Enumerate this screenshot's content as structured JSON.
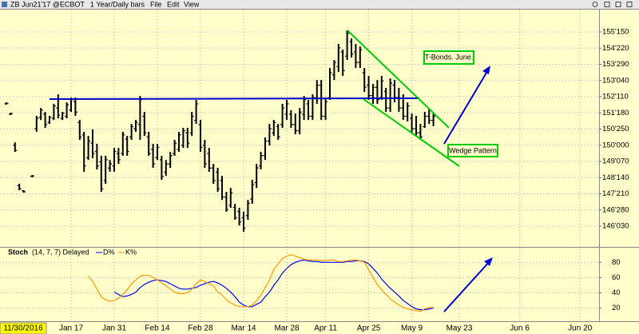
{
  "window": {
    "symbol": "ZB Jun21'17 @ECBOT",
    "interval": "1 Year/Daily bars",
    "menu": [
      "File",
      "Edit",
      "View"
    ]
  },
  "cursor_date": "11/30/2016",
  "chart_data": [
    {
      "type": "ohlc",
      "color": "#000000",
      "ylim": [
        145.13,
        156.55
      ],
      "yticks": [
        {
          "value": 155.46875,
          "label": "155'150"
        },
        {
          "value": 154.6875,
          "label": "154'220"
        },
        {
          "value": 153.90625,
          "label": "153'290"
        },
        {
          "value": 153.125,
          "label": "153'040"
        },
        {
          "value": 152.34375,
          "label": "152'110"
        },
        {
          "value": 151.5625,
          "label": "151'180"
        },
        {
          "value": 150.78125,
          "label": "150'250"
        },
        {
          "value": 150.0,
          "label": "150'000"
        },
        {
          "value": 149.21875,
          "label": "149'070"
        },
        {
          "value": 148.4375,
          "label": "148'140"
        },
        {
          "value": 147.65625,
          "label": "147'210"
        },
        {
          "value": 146.875,
          "label": "146'280"
        },
        {
          "value": 146.09375,
          "label": "146'030"
        }
      ],
      "grid": true,
      "annotations": [
        "T-Bonds. June.",
        "Wedge Pattern"
      ],
      "categories": [
        null,
        null,
        null,
        null,
        null,
        null,
        null,
        null,
        null,
        null,
        null,
        null,
        null,
        null,
        null,
        "Jan 17",
        null,
        null,
        null,
        null,
        null,
        null,
        null,
        null,
        null,
        "Jan 31",
        null,
        null,
        null,
        null,
        null,
        null,
        null,
        null,
        null,
        "Feb 14",
        null,
        null,
        null,
        null,
        null,
        null,
        null,
        null,
        null,
        "Feb 28",
        null,
        null,
        null,
        null,
        null,
        null,
        null,
        null,
        null,
        "Mar 14",
        null,
        null,
        null,
        null,
        null,
        null,
        null,
        null,
        null,
        "Mar 28",
        null,
        null,
        null,
        null,
        null,
        null,
        null,
        null,
        "Apr 11",
        null,
        null,
        null,
        null,
        null,
        null,
        null,
        null,
        null,
        "Apr 25",
        null,
        null,
        null,
        null,
        null,
        null,
        null,
        null,
        null,
        "May 9",
        null,
        null,
        null,
        null,
        null,
        null,
        null,
        null,
        null,
        null,
        "May 23",
        null,
        null,
        null,
        null,
        null,
        null,
        null,
        null,
        null,
        null,
        null,
        null,
        null,
        "Jun 6",
        null,
        null,
        null,
        null,
        null,
        null,
        null,
        null,
        null,
        null,
        null,
        null,
        null,
        "Jun 20",
        null,
        null,
        null,
        null,
        null,
        null,
        null,
        null,
        null,
        null
      ],
      "open": [
        152.0,
        151.5,
        150.0,
        148.05,
        147.8,
        null,
        148.5,
        150.8,
        151.35,
        151.5,
        151.1,
        151.3,
        151.8,
        151.3,
        151.4,
        151.7,
        152.1,
        151.1,
        150.5,
        149.4,
        150.1,
        149.7,
        149.2,
        148.3,
        148.9,
        149.0,
        149.6,
        149.6,
        150.3,
        150.4,
        150.8,
        151.0,
        151.4,
        150.4,
        149.8,
        149.4,
        149.3,
        148.7,
        149.1,
        149.6,
        149.8,
        150.0,
        150.6,
        150.6,
        151.2,
        151.0,
        150.0,
        149.6,
        148.9,
        148.7,
        148.3,
        147.5,
        147.1,
        147.0,
        146.8,
        146.5,
        146.6,
        147.4,
        148.2,
        149.0,
        149.5,
        150.2,
        150.6,
        150.9,
        151.0,
        151.5,
        151.5,
        151.0,
        150.7,
        151.5,
        152.0,
        151.4,
        152.3,
        152.9,
        151.4,
        152.3,
        153.4,
        153.8,
        154.5,
        154.3,
        155.0,
        154.5,
        154.0,
        153.5,
        152.9,
        152.4,
        152.8,
        152.3,
        152.6,
        151.8,
        152.9,
        152.3,
        151.8,
        151.4,
        151.3,
        150.8,
        150.6,
        150.9,
        151.4,
        151.2,
        null,
        null,
        null,
        null,
        null,
        null,
        null,
        null,
        null,
        null,
        null,
        null,
        null,
        null,
        null,
        null,
        null,
        null,
        null,
        null,
        null,
        null,
        null,
        null,
        null,
        null,
        null,
        null,
        null,
        null,
        null,
        null,
        null,
        null,
        null,
        null,
        null,
        null,
        null,
        null,
        null,
        null,
        null,
        null
      ],
      "high": [
        152.07,
        151.57,
        150.14,
        148.14,
        147.83,
        null,
        148.56,
        151.42,
        151.8,
        151.61,
        151.42,
        152.0,
        152.46,
        151.61,
        152.07,
        152.3,
        152.3,
        151.22,
        150.65,
        150.45,
        150.76,
        150.07,
        149.49,
        149.49,
        149.29,
        149.87,
        149.87,
        150.65,
        150.45,
        151.03,
        151.22,
        152.38,
        151.61,
        150.65,
        150.07,
        150.07,
        149.49,
        149.29,
        149.68,
        150.26,
        150.65,
        150.84,
        150.84,
        151.61,
        152.19,
        151.22,
        150.26,
        149.87,
        149.1,
        148.91,
        148.52,
        147.75,
        147.94,
        147.17,
        146.98,
        146.79,
        147.36,
        148.33,
        149.1,
        149.68,
        150.38,
        151.03,
        151.22,
        151.03,
        152.0,
        152.19,
        151.69,
        151.53,
        151.8,
        152.38,
        152.19,
        152.46,
        153.15,
        153.15,
        152.3,
        153.73,
        154.12,
        154.89,
        154.62,
        155.55,
        155.16,
        154.89,
        154.77,
        153.73,
        153.35,
        152.96,
        153.15,
        153.35,
        152.77,
        153.23,
        153.15,
        152.77,
        152.46,
        152.07,
        151.53,
        151.42,
        151.03,
        151.61,
        151.76,
        151.53,
        null,
        null,
        null,
        null,
        null,
        null,
        null,
        null,
        null,
        null,
        null,
        null,
        null,
        null,
        null,
        null,
        null,
        null,
        null,
        null,
        null,
        null,
        null,
        null,
        null,
        null,
        null,
        null,
        null,
        null,
        null,
        null,
        null,
        null,
        null,
        null,
        null,
        null,
        null,
        null,
        null,
        null,
        null,
        null
      ],
      "low": [
        151.96,
        151.46,
        149.68,
        147.83,
        147.71,
        null,
        148.45,
        150.65,
        151.22,
        150.84,
        151.03,
        151.22,
        151.3,
        151.22,
        151.3,
        151.61,
        151.42,
        150.26,
        148.72,
        149.29,
        149.37,
        148.83,
        147.75,
        148.14,
        148.72,
        148.72,
        149.1,
        149.49,
        149.49,
        150.26,
        150.65,
        150.26,
        150.45,
        149.49,
        148.91,
        149.29,
        148.33,
        148.52,
        148.91,
        149.49,
        149.68,
        149.87,
        149.87,
        150.45,
        151.03,
        149.68,
        148.91,
        148.72,
        148.14,
        147.75,
        147.36,
        146.79,
        146.98,
        146.4,
        146.13,
        145.82,
        146.4,
        147.17,
        147.94,
        148.83,
        149.29,
        149.99,
        150.45,
        150.26,
        150.84,
        151.22,
        150.84,
        150.53,
        150.53,
        151.22,
        151.22,
        151.22,
        152.0,
        151.22,
        151.22,
        152.19,
        153.15,
        153.54,
        153.35,
        154.12,
        154.23,
        153.73,
        153.73,
        152.57,
        152.19,
        152.0,
        152.0,
        152.19,
        151.61,
        151.61,
        152.07,
        151.61,
        151.22,
        151.15,
        150.61,
        150.45,
        150.26,
        150.84,
        151.03,
        150.92,
        null,
        null,
        null,
        null,
        null,
        null,
        null,
        null,
        null,
        null,
        null,
        null,
        null,
        null,
        null,
        null,
        null,
        null,
        null,
        null,
        null,
        null,
        null,
        null,
        null,
        null,
        null,
        null,
        null,
        null,
        null,
        null,
        null,
        null,
        null,
        null,
        null,
        null,
        null,
        null,
        null,
        null,
        null,
        null
      ],
      "close": [
        152.03,
        151.53,
        149.75,
        147.9,
        147.75,
        null,
        148.52,
        151.3,
        151.7,
        151.0,
        151.35,
        151.9,
        151.45,
        151.55,
        151.95,
        152.2,
        151.6,
        150.4,
        149.0,
        150.2,
        149.6,
        149.0,
        147.9,
        149.3,
        149.1,
        149.7,
        149.3,
        150.5,
        149.7,
        150.9,
        151.1,
        152.2,
        150.6,
        149.6,
        149.1,
        149.9,
        148.5,
        149.1,
        149.5,
        150.1,
        150.5,
        150.7,
        150.1,
        151.4,
        152.0,
        149.9,
        149.1,
        148.9,
        148.3,
        147.9,
        147.5,
        146.9,
        147.7,
        146.5,
        146.3,
        146.0,
        147.2,
        148.1,
        148.9,
        149.5,
        150.2,
        150.8,
        151.1,
        150.4,
        151.8,
        152.0,
        151.0,
        150.7,
        151.6,
        152.2,
        151.4,
        152.3,
        152.9,
        151.4,
        152.1,
        153.5,
        154.0,
        154.7,
        153.6,
        155.4,
        154.4,
        154.0,
        154.6,
        152.8,
        152.4,
        152.8,
        152.2,
        153.1,
        151.8,
        153.0,
        152.3,
        151.8,
        151.4,
        151.9,
        150.8,
        150.6,
        150.4,
        151.4,
        151.2,
        151.4,
        null,
        null,
        null,
        null,
        null,
        null,
        null,
        null,
        null,
        null,
        null,
        null,
        null,
        null,
        null,
        null,
        null,
        null,
        null,
        null,
        null,
        null,
        null,
        null,
        null,
        null,
        null,
        null,
        null,
        null,
        null,
        null,
        null,
        null,
        null,
        null,
        null,
        null,
        null,
        null,
        null,
        null,
        null,
        null
      ]
    },
    {
      "type": "line",
      "title": "Stoch",
      "subtitle": "(14, 7, 7) Delayed",
      "ylim": [
        4,
        97
      ],
      "yticks": [
        80,
        60,
        40,
        20
      ],
      "grid": true,
      "series": [
        {
          "name": "D%",
          "color": "#0000ff",
          "values": [
            null,
            null,
            null,
            null,
            null,
            null,
            null,
            null,
            null,
            null,
            null,
            null,
            null,
            null,
            null,
            null,
            null,
            null,
            null,
            null,
            null,
            null,
            null,
            null,
            null,
            41,
            38,
            35,
            36,
            38,
            41,
            47,
            51,
            54,
            56,
            57,
            56,
            55,
            52,
            49,
            46,
            45,
            45,
            46,
            47,
            50,
            52,
            54,
            55,
            53,
            50,
            46,
            41,
            35,
            28,
            24,
            22,
            22,
            25,
            28,
            35,
            41,
            50,
            57,
            66,
            72,
            77,
            80,
            82,
            83,
            82,
            81,
            81,
            80,
            80,
            80,
            80,
            80,
            80,
            81,
            81,
            82,
            82,
            81,
            78,
            72,
            66,
            58,
            52,
            46,
            41,
            36,
            30,
            26,
            22,
            19,
            18,
            18,
            19,
            20,
            null,
            null,
            null,
            null,
            null,
            null,
            null,
            null,
            null,
            null,
            null,
            null,
            null,
            null,
            null,
            null,
            null,
            null,
            null,
            null,
            null,
            null,
            null,
            null,
            null,
            null,
            null,
            null,
            null,
            null,
            null,
            null,
            null,
            null,
            null,
            null,
            null,
            null,
            null,
            null,
            null,
            null,
            null,
            null
          ]
        },
        {
          "name": "K%",
          "color": "#ff9900",
          "values": [
            null,
            null,
            null,
            null,
            null,
            null,
            null,
            null,
            null,
            null,
            null,
            null,
            null,
            null,
            null,
            null,
            null,
            null,
            null,
            62,
            55,
            45,
            35,
            31,
            29,
            30,
            33,
            38,
            44,
            52,
            57,
            62,
            63,
            63,
            60,
            57,
            53,
            49,
            45,
            41,
            39,
            39,
            40,
            45,
            52,
            57,
            55,
            52,
            49,
            41,
            37,
            31,
            27,
            24,
            22,
            22,
            22,
            24,
            30,
            37,
            47,
            57,
            71,
            78,
            85,
            88,
            90,
            88,
            86,
            84,
            83,
            83,
            83,
            82,
            82,
            83,
            83,
            81,
            81,
            82,
            83,
            83,
            82,
            80,
            70,
            60,
            51,
            44,
            38,
            32,
            28,
            24,
            21,
            19,
            18,
            17,
            16,
            19,
            21,
            21,
            null,
            null,
            null,
            null,
            null,
            null,
            null,
            null,
            null,
            null,
            null,
            null,
            null,
            null,
            null,
            null,
            null,
            null,
            null,
            null,
            null,
            null,
            null,
            null,
            null,
            null,
            null,
            null,
            null,
            null,
            null,
            null,
            null,
            null,
            null,
            null,
            null,
            null,
            null,
            null,
            null,
            null,
            null,
            null
          ]
        }
      ]
    }
  ]
}
